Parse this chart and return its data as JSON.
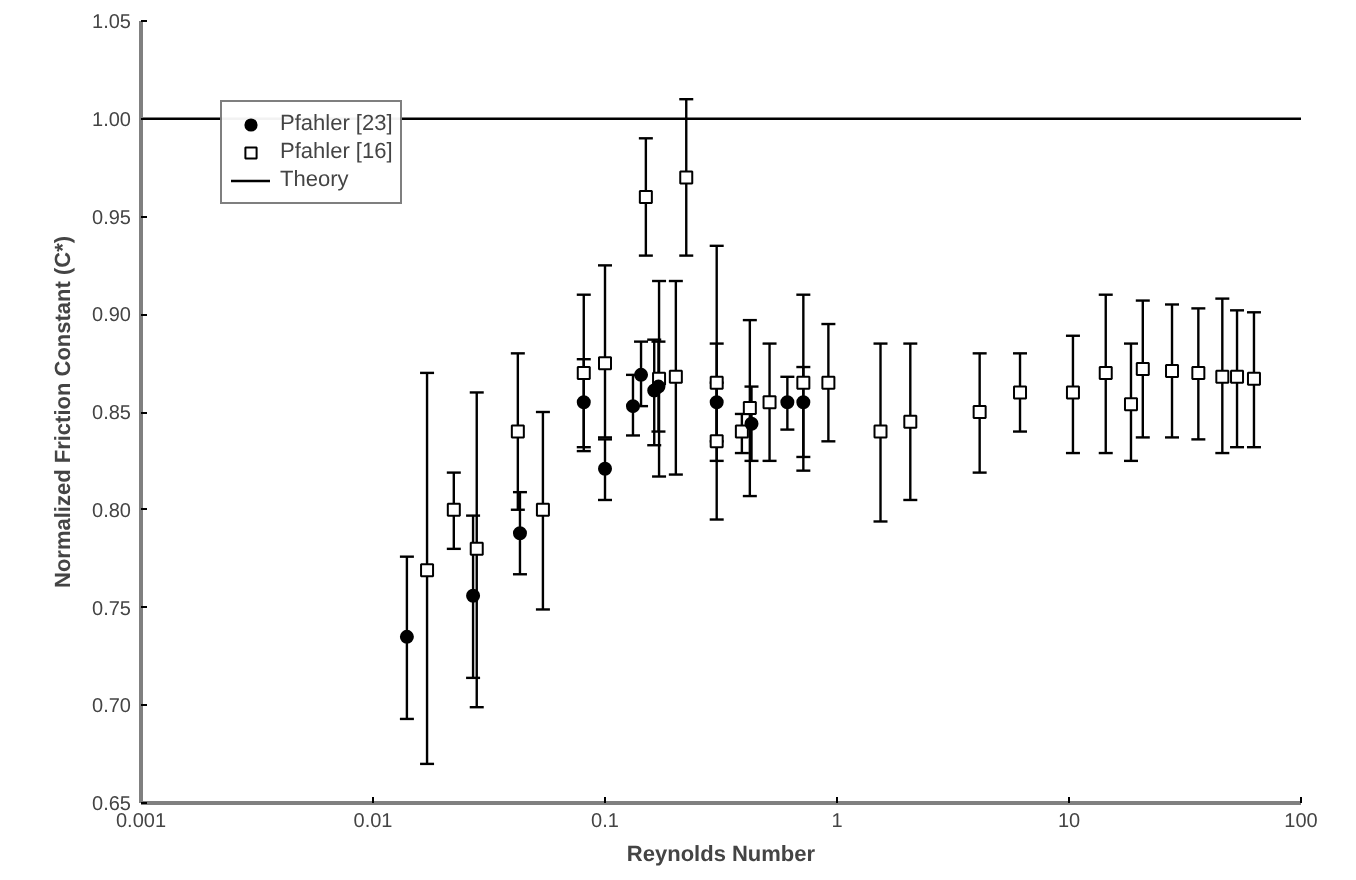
{
  "chart_data": {
    "type": "scatter",
    "xlabel": "Reynolds Number",
    "ylabel": "Normalized Friction Constant (C*)",
    "log": "x",
    "legend": "top left",
    "grid": false,
    "xlim": [
      0.001,
      100
    ],
    "xticks": [
      0.001,
      0.01,
      0.1,
      1,
      10,
      100
    ],
    "ylim": [
      0.65,
      1.05
    ],
    "yticks": [
      {
        "value": 0.65,
        "label": "0.65"
      },
      {
        "value": 0.7,
        "label": "0.70"
      },
      {
        "value": 0.75,
        "label": "0.75"
      },
      {
        "value": 0.8,
        "label": "0.80"
      },
      {
        "value": 0.85,
        "label": "0.85"
      },
      {
        "value": 0.9,
        "label": "0.90"
      },
      {
        "value": 0.95,
        "label": "0.95"
      },
      {
        "value": 1.0,
        "label": "1.00"
      },
      {
        "value": 1.05,
        "label": "1.05"
      }
    ],
    "series": [
      {
        "name": "Pfahler [23]",
        "marker": "circle",
        "color": "#000000",
        "x": [
          0.014,
          0.027,
          0.043,
          0.081,
          0.1,
          0.132,
          0.143,
          0.163,
          0.17,
          0.303,
          0.428,
          0.611,
          0.716
        ],
        "values": [
          0.735,
          0.756,
          0.788,
          0.855,
          0.821,
          0.853,
          0.869,
          0.861,
          0.863,
          0.855,
          0.844,
          0.855,
          0.855
        ],
        "errors": [
          [
            0.693,
            0.776
          ],
          [
            0.714,
            0.797
          ],
          [
            0.767,
            0.809
          ],
          [
            0.83,
            0.877
          ],
          [
            0.805,
            0.836
          ],
          [
            0.838,
            0.869
          ],
          [
            0.853,
            0.886
          ],
          [
            0.833,
            0.887
          ],
          [
            0.84,
            0.886
          ],
          [
            0.825,
            0.885
          ],
          [
            0.825,
            0.863
          ],
          [
            0.841,
            0.868
          ],
          [
            0.827,
            0.873
          ]
        ]
      },
      {
        "name": "Pfahler [16]",
        "marker": "square",
        "color": "#000000",
        "x": [
          0.0171,
          0.0223,
          0.028,
          0.0421,
          0.054,
          0.081,
          0.1,
          0.15,
          0.171,
          0.202,
          0.224,
          0.303,
          0.303,
          0.389,
          0.421,
          0.512,
          0.716,
          0.918,
          1.54,
          2.07,
          4.12,
          6.15,
          10.4,
          14.4,
          18.5,
          20.8,
          27.8,
          36.1,
          45.8,
          53,
          62.7
        ],
        "values": [
          0.769,
          0.8,
          0.78,
          0.84,
          0.8,
          0.87,
          0.875,
          0.96,
          0.867,
          0.868,
          0.97,
          0.865,
          0.835,
          0.84,
          0.852,
          0.855,
          0.865,
          0.865,
          0.84,
          0.845,
          0.85,
          0.86,
          0.86,
          0.87,
          0.854,
          0.872,
          0.871,
          0.87,
          0.868,
          0.868,
          0.867
        ],
        "errors": [
          [
            0.67,
            0.87
          ],
          [
            0.78,
            0.819
          ],
          [
            0.699,
            0.86
          ],
          [
            0.8,
            0.88
          ],
          [
            0.749,
            0.85
          ],
          [
            0.832,
            0.91
          ],
          [
            0.837,
            0.925
          ],
          [
            0.93,
            0.99
          ],
          [
            0.817,
            0.917
          ],
          [
            0.818,
            0.917
          ],
          [
            0.93,
            1.01
          ],
          [
            0.835,
            0.935
          ],
          [
            0.795,
            0.865
          ],
          [
            0.829,
            0.849
          ],
          [
            0.807,
            0.897
          ],
          [
            0.825,
            0.885
          ],
          [
            0.82,
            0.91
          ],
          [
            0.835,
            0.895
          ],
          [
            0.794,
            0.885
          ],
          [
            0.805,
            0.885
          ],
          [
            0.819,
            0.88
          ],
          [
            0.84,
            0.88
          ],
          [
            0.829,
            0.889
          ],
          [
            0.829,
            0.91
          ],
          [
            0.825,
            0.885
          ],
          [
            0.837,
            0.907
          ],
          [
            0.837,
            0.905
          ],
          [
            0.836,
            0.903
          ],
          [
            0.829,
            0.908
          ],
          [
            0.832,
            0.902
          ],
          [
            0.832,
            0.901
          ]
        ]
      },
      {
        "name": "Theory",
        "type": "line",
        "color": "#000000",
        "x": [
          0.001,
          100
        ],
        "values": [
          1.0,
          1.0
        ]
      }
    ]
  }
}
